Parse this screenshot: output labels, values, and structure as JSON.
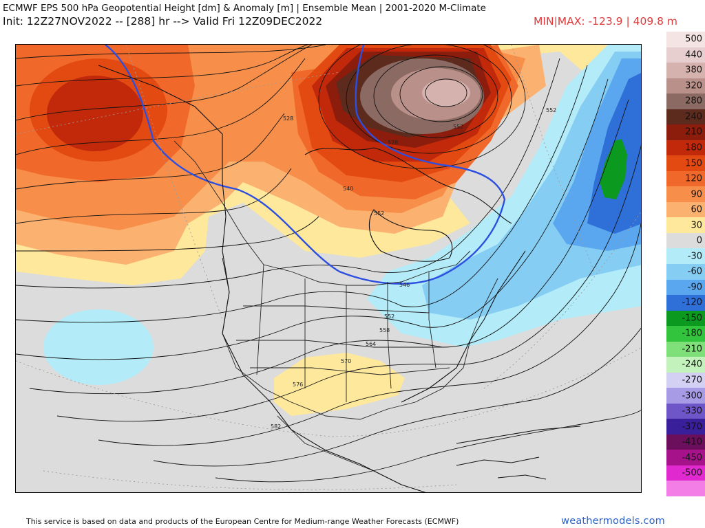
{
  "header": {
    "title": "ECMWF EPS 500 hPa Geopotential Height [dm] & Anomaly [m] | Ensemble Mean | 2001-2020 M-Climate",
    "init_line": "Init: 12Z27NOV2022 -- [288] hr --> Valid Fri 12Z09DEC2022",
    "minmax": "MIN|MAX: -123.9 | 409.8 m"
  },
  "map": {
    "contour_labels": [
      "528",
      "552",
      "552",
      "540",
      "546",
      "552",
      "558",
      "564",
      "570",
      "576",
      "582",
      "528",
      "552"
    ]
  },
  "colorbar": {
    "levels": [
      {
        "label": "500",
        "color": "#f4e4e4"
      },
      {
        "label": "440",
        "color": "#e8cfcf"
      },
      {
        "label": "380",
        "color": "#d6b2ae"
      },
      {
        "label": "320",
        "color": "#b9918a"
      },
      {
        "label": "280",
        "color": "#8a6a62"
      },
      {
        "label": "240",
        "color": "#5c2b1e"
      },
      {
        "label": "210",
        "color": "#8c1c0c"
      },
      {
        "label": "180",
        "color": "#c2290a"
      },
      {
        "label": "150",
        "color": "#e34a12"
      },
      {
        "label": "120",
        "color": "#f0692a"
      },
      {
        "label": "90",
        "color": "#f78f4a"
      },
      {
        "label": "60",
        "color": "#fbb170"
      },
      {
        "label": "30",
        "color": "#fde89b"
      },
      {
        "label": "0",
        "color": "#dcdcdc"
      },
      {
        "label": "-30",
        "color": "#b3ecf8"
      },
      {
        "label": "-60",
        "color": "#86cdf3"
      },
      {
        "label": "-90",
        "color": "#5aa7ef"
      },
      {
        "label": "-120",
        "color": "#2f6fd8"
      },
      {
        "label": "-150",
        "color": "#0b9a1f"
      },
      {
        "label": "-180",
        "color": "#32c43c"
      },
      {
        "label": "-210",
        "color": "#7fe07a"
      },
      {
        "label": "-240",
        "color": "#c4f2bc"
      },
      {
        "label": "-270",
        "color": "#d4d0f4"
      },
      {
        "label": "-300",
        "color": "#a79be6"
      },
      {
        "label": "-330",
        "color": "#6f56c8"
      },
      {
        "label": "-370",
        "color": "#3a1f9a"
      },
      {
        "label": "-410",
        "color": "#6b0e5c"
      },
      {
        "label": "-450",
        "color": "#a5128a"
      },
      {
        "label": "-500",
        "color": "#e02ad0"
      },
      {
        "label": "",
        "color": "#f27ee6"
      }
    ]
  },
  "footer": {
    "credit": "This service is based on data and products of the European Centre for Medium-range Weather Forecasts (ECMWF)",
    "brand": "weathermodels.com"
  }
}
